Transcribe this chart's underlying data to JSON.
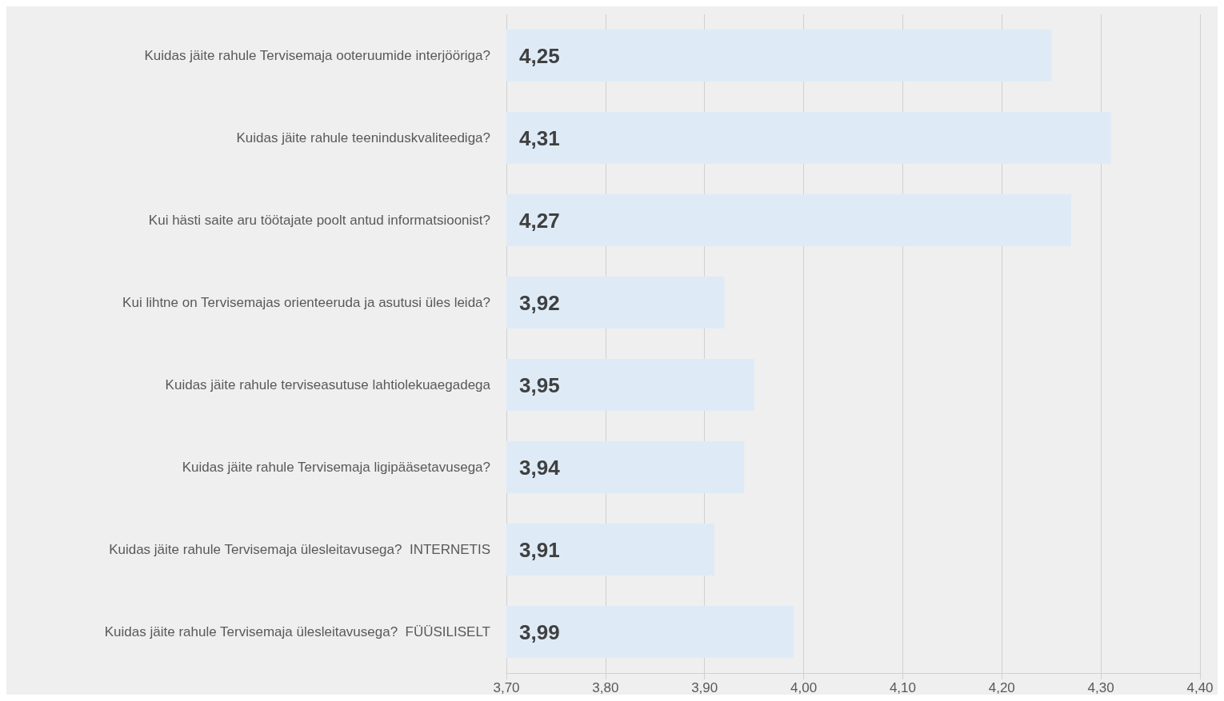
{
  "chart_data": {
    "type": "bar",
    "orientation": "horizontal",
    "categories": [
      "Kuidas jäite rahule Tervisemaja ooteruumide interjööriga?",
      "Kuidas jäite rahule teeninduskvaliteediga?",
      "Kui hästi saite aru töötajate poolt antud informatsioonist?",
      "Kui lihtne on Tervisemajas orienteeruda ja asutusi üles leida?",
      "Kuidas jäite rahule terviseasutuse lahtiolekuaegadega",
      "Kuidas jäite rahule Tervisemaja ligipääsetavusega?",
      "Kuidas jäite rahule Tervisemaja ülesleitavusega?  INTERNETIS",
      "Kuidas jäite rahule Tervisemaja ülesleitavusega?  FÜÜSILISELT"
    ],
    "values": [
      4.25,
      4.31,
      4.27,
      3.92,
      3.95,
      3.94,
      3.91,
      3.99
    ],
    "value_labels": [
      "4,25",
      "4,31",
      "4,27",
      "3,92",
      "3,95",
      "3,94",
      "3,91",
      "3,99"
    ],
    "color": "#deebf7",
    "xlim": [
      3.7,
      4.4
    ],
    "xticks": [
      {
        "value": 3.7,
        "label": "3,70"
      },
      {
        "value": 3.8,
        "label": "3,80"
      },
      {
        "value": 3.9,
        "label": "3,90"
      },
      {
        "value": 4.0,
        "label": "4,00"
      },
      {
        "value": 4.1,
        "label": "4,10"
      },
      {
        "value": 4.2,
        "label": "4,20"
      },
      {
        "value": 4.3,
        "label": "4,30"
      },
      {
        "value": 4.4,
        "label": "4,40"
      }
    ],
    "grid": "x"
  }
}
